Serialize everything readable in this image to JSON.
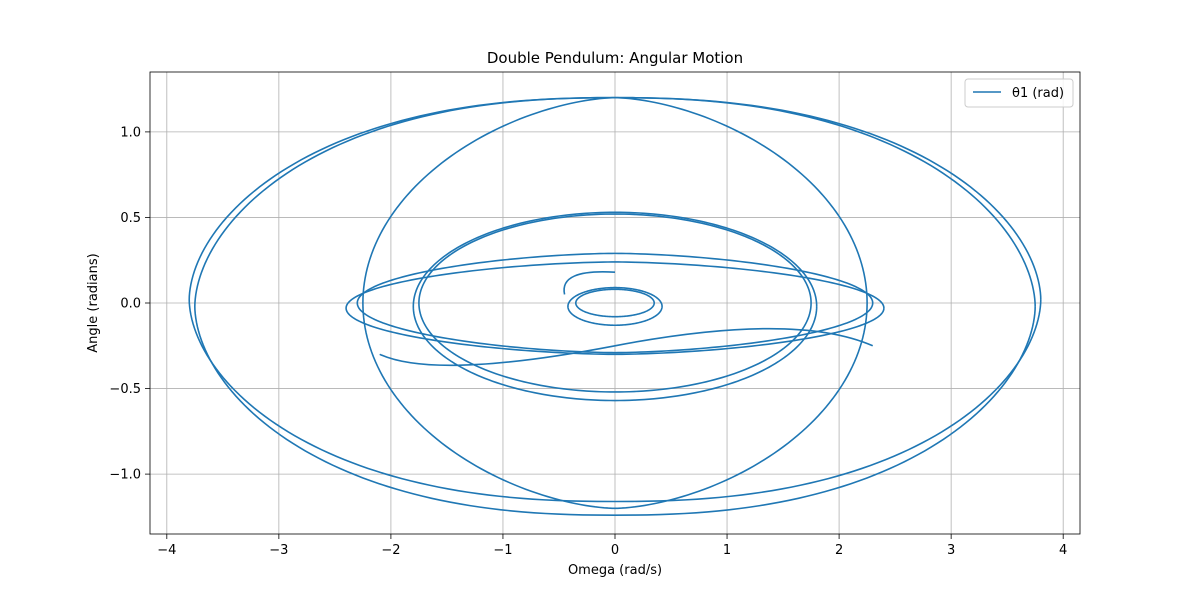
{
  "chart_data": {
    "type": "line",
    "title": "Double Pendulum: Angular Motion",
    "xlabel": "Omega (rad/s)",
    "ylabel": "Angle (radians)",
    "xlim": [
      -4.15,
      4.15
    ],
    "ylim": [
      -1.35,
      1.35
    ],
    "xticks": [
      -4,
      -3,
      -2,
      -1,
      0,
      1,
      2,
      3,
      4
    ],
    "xtick_labels": [
      "−4",
      "−3",
      "−2",
      "−1",
      "0",
      "1",
      "2",
      "3",
      "4"
    ],
    "yticks": [
      -1.0,
      -0.5,
      0.0,
      0.5,
      1.0
    ],
    "ytick_labels": [
      "−1.0",
      "−0.5",
      "0.0",
      "0.5",
      "1.0"
    ],
    "grid": true,
    "legend_position": "top-right",
    "series": [
      {
        "name": "θ1 (rad)",
        "color": "#1f77b4",
        "start_point": [
          0.0,
          0.18
        ],
        "end_point": [
          -2.1,
          -0.3
        ],
        "loops": [
          {
            "omega_max": 0.35,
            "angle_max": 0.08,
            "angle_offset": 0.0
          },
          {
            "omega_max": 0.42,
            "angle_max": 0.11,
            "angle_offset": -0.02
          },
          {
            "omega_max": 1.75,
            "angle_max": 0.52,
            "angle_offset": 0.0
          },
          {
            "omega_max": 1.8,
            "angle_max": 0.55,
            "angle_offset": -0.02
          },
          {
            "omega_max": 2.3,
            "angle_max": 0.29,
            "angle_offset": 0.0
          },
          {
            "omega_max": 2.4,
            "angle_max": 0.27,
            "angle_offset": -0.03
          },
          {
            "omega_max": 2.25,
            "angle_max": 1.2,
            "angle_offset": 0.0
          },
          {
            "omega_max": 3.75,
            "angle_max": 1.22,
            "angle_offset": -0.02
          },
          {
            "omega_max": 3.8,
            "angle_max": 1.18,
            "angle_offset": 0.02
          }
        ]
      }
    ]
  }
}
